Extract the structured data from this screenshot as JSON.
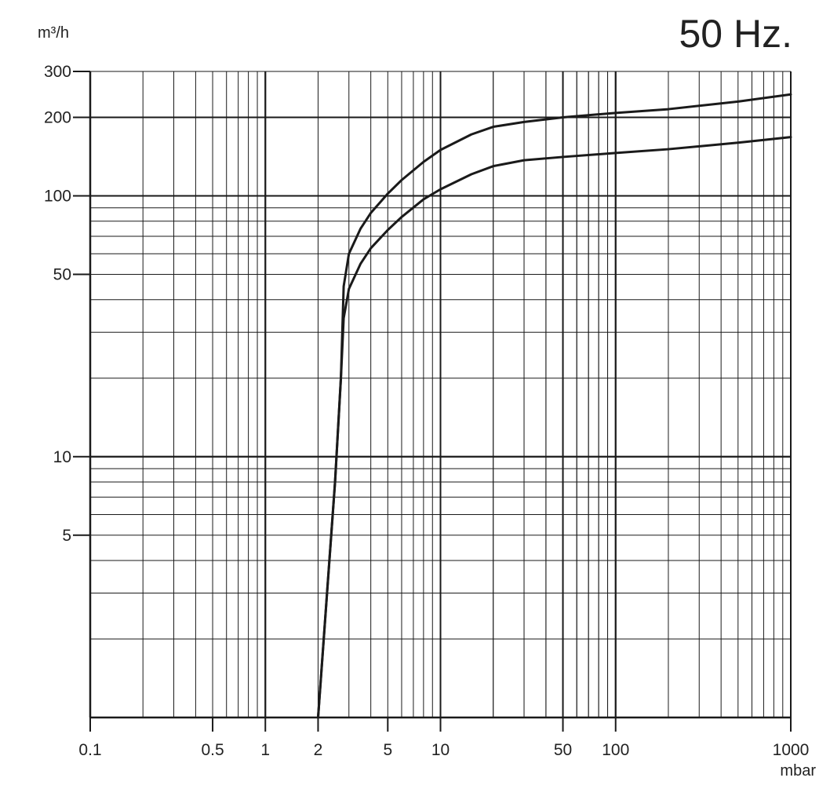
{
  "title": "50 Hz.",
  "chart_data": {
    "type": "line",
    "title": "50 Hz.",
    "xlabel": "mbar",
    "ylabel": "m³/h",
    "xscale": "log",
    "yscale": "log",
    "xlim": [
      0.1,
      1000
    ],
    "ylim": [
      1,
      300
    ],
    "grid": true,
    "x_ticks": [
      0.1,
      0.5,
      1,
      2,
      5,
      10,
      50,
      100,
      1000
    ],
    "x_tick_labels": [
      "0.1",
      "0.5",
      "1",
      "2",
      "5",
      "10",
      "50",
      "100",
      "1000"
    ],
    "y_ticks": [
      5,
      10,
      50,
      100,
      200,
      300
    ],
    "y_tick_labels": [
      "5",
      "10",
      "50",
      "100",
      "200",
      "300"
    ],
    "series": [
      {
        "x": [
          2,
          2.5,
          2.7,
          2.8,
          3,
          3.5,
          4,
          5,
          6,
          8,
          10,
          15,
          20,
          30,
          50,
          100,
          200,
          500,
          1000
        ],
        "values": [
          1,
          8,
          20,
          45,
          60,
          75,
          86,
          102,
          115,
          135,
          150,
          172,
          184,
          192,
          200,
          208,
          215,
          230,
          245
        ]
      },
      {
        "x": [
          2,
          2.5,
          2.7,
          2.8,
          3,
          3.5,
          4,
          5,
          6,
          8,
          10,
          15,
          20,
          30,
          50,
          100,
          200,
          500,
          1000
        ],
        "values": [
          1,
          8,
          20,
          34,
          44,
          55,
          63,
          74,
          83,
          97,
          106,
          121,
          130,
          137,
          141,
          146,
          151,
          160,
          168
        ]
      }
    ]
  }
}
